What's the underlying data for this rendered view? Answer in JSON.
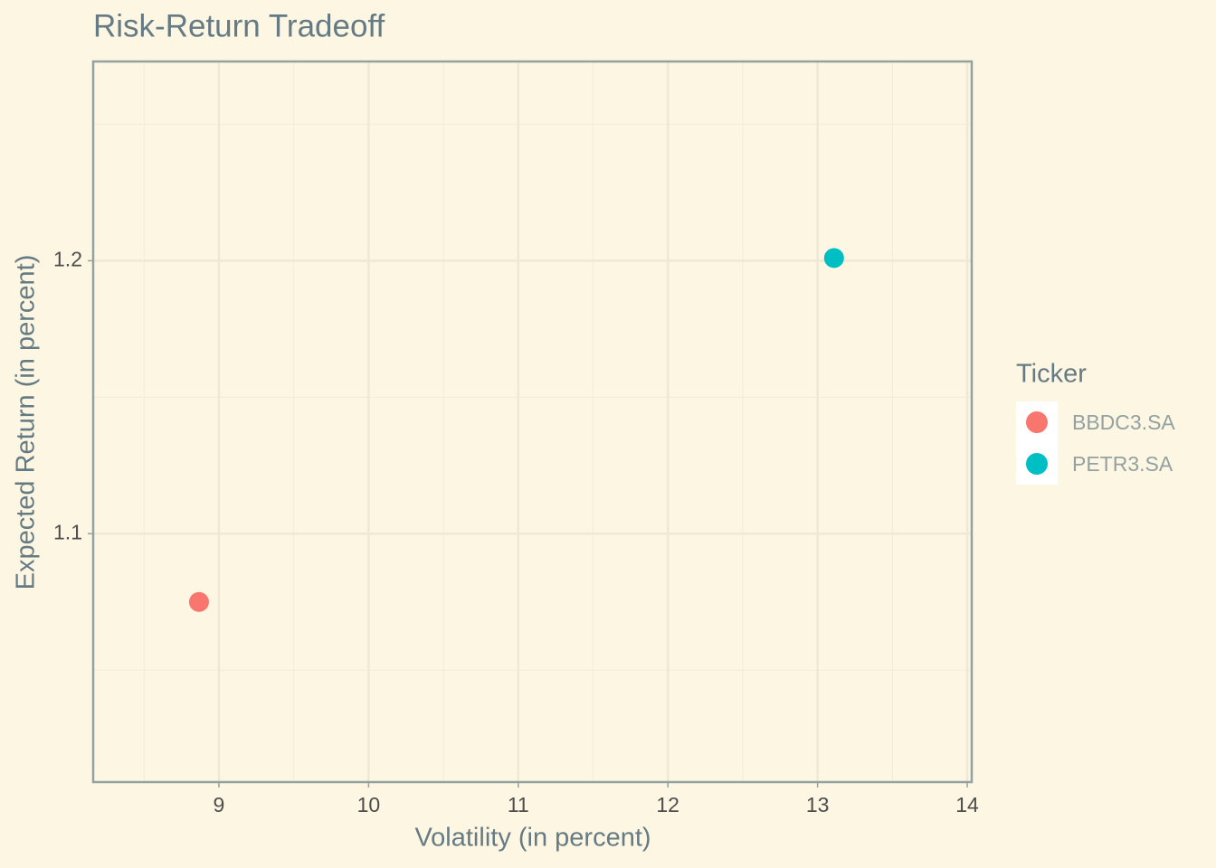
{
  "chart_data": {
    "type": "scatter",
    "title": "Risk-Return Tradeoff",
    "x_label": "Volatility (in percent)",
    "y_label": "Expected Return (in percent)",
    "legend_title": "Ticker",
    "legend_position": "right",
    "series": [
      {
        "name": "BBDC3.SA",
        "color": "#f8766d",
        "x": [
          8.867
        ],
        "values": [
          1.075
        ]
      },
      {
        "name": "PETR3.SA",
        "color": "#00bfc4",
        "x": [
          13.11
        ],
        "values": [
          1.201
        ]
      }
    ],
    "xlim": [
      8.16,
      14.03
    ],
    "xticks": [
      9,
      10,
      11,
      12,
      13,
      14
    ],
    "ylim": [
      1.009,
      1.273
    ],
    "yticks": [
      1.1,
      1.2
    ],
    "grid": true
  }
}
